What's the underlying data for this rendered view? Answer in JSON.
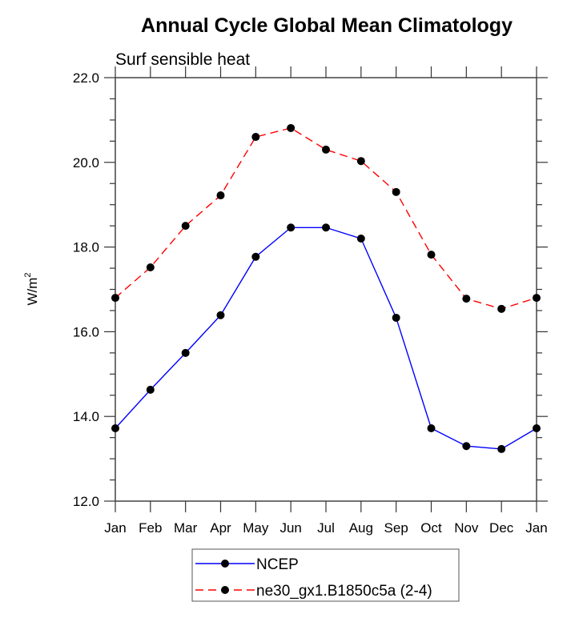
{
  "chart_data": {
    "type": "line",
    "title": "Annual Cycle Global Mean Climatology",
    "subtitle": "Surf sensible heat",
    "xlabel": "",
    "ylabel": "W/m",
    "ylabel_superscript": "2",
    "categories": [
      "Jan",
      "Feb",
      "Mar",
      "Apr",
      "May",
      "Jun",
      "Jul",
      "Aug",
      "Sep",
      "Oct",
      "Nov",
      "Dec",
      "Jan"
    ],
    "ylim": [
      12.0,
      22.0
    ],
    "yticks": [
      12.0,
      14.0,
      16.0,
      18.0,
      20.0,
      22.0
    ],
    "ytick_labels": [
      "12.0",
      "14.0",
      "16.0",
      "18.0",
      "20.0",
      "22.0"
    ],
    "yminor_step": 0.5,
    "grid": false,
    "legend_position": "bottom-center",
    "series": [
      {
        "name": "NCEP",
        "color": "#0000ff",
        "style": "solid",
        "marker": "filled-circle",
        "values": [
          13.72,
          14.63,
          15.5,
          16.39,
          17.77,
          18.46,
          18.46,
          18.2,
          16.33,
          13.72,
          13.3,
          13.23,
          13.72
        ]
      },
      {
        "name": "ne30_gx1.B1850c5a (2-4)",
        "color": "#ff0000",
        "style": "dashed",
        "marker": "filled-circle",
        "values": [
          16.8,
          17.52,
          18.5,
          19.22,
          20.6,
          20.81,
          20.3,
          20.03,
          19.3,
          17.82,
          16.78,
          16.54,
          16.8
        ]
      }
    ]
  }
}
